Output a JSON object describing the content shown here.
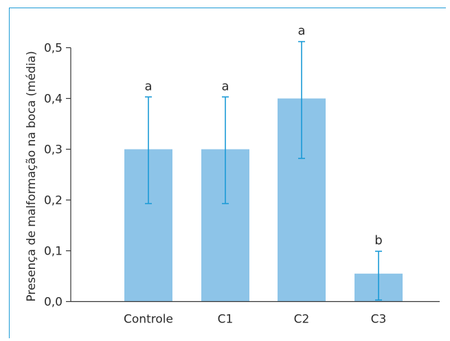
{
  "chart_data": {
    "type": "bar",
    "title": "",
    "xlabel": "",
    "ylabel": "Presença de malformação na boca (média)",
    "categories": [
      "Controle",
      "C1",
      "C2",
      "C3"
    ],
    "values": [
      0.3,
      0.3,
      0.4,
      0.055
    ],
    "error_low": [
      0.193,
      0.193,
      0.282,
      0.003
    ],
    "error_high": [
      0.403,
      0.403,
      0.512,
      0.099
    ],
    "significance_labels": [
      "a",
      "a",
      "a",
      "b"
    ],
    "ylim": [
      0,
      0.5
    ],
    "yticks": [
      0.0,
      0.1,
      0.2,
      0.3,
      0.4,
      0.5
    ],
    "ytick_labels": [
      "0,0",
      "0,1",
      "0,2",
      "0,3",
      "0,4",
      "0,5"
    ],
    "grid": false,
    "colors": {
      "bar": "#8dc4e8",
      "error_bar": "#1a9ad6",
      "frame": "#1a9ad6",
      "axis": "#333333"
    }
  }
}
